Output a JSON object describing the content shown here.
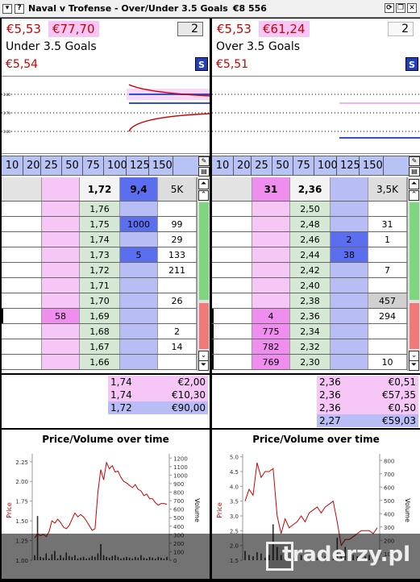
{
  "window": {
    "title": "Naval v Trofense - Over/Under 3.5 Goals",
    "amount": "€8 556"
  },
  "colors": {
    "back": "#b9bdf6",
    "lay": "#f6c6f6",
    "price": "#d4e8d4",
    "red": "#c00000",
    "blue": "#1f3fbf"
  },
  "left": {
    "best_price": "€5,53",
    "matched": "€77,70",
    "quantity": "2",
    "selection": "Under 3.5 Goals",
    "last_price": "€5,54",
    "s_button": "S",
    "stakes": [
      "10",
      "20",
      "25",
      "50",
      "75",
      "100",
      "125",
      "150"
    ],
    "header": {
      "col2": "1,72",
      "col3": "9,4",
      "col4": "5K"
    },
    "rows": [
      {
        "lay": "",
        "price": "1,76",
        "back": "",
        "vol": ""
      },
      {
        "lay": "",
        "price": "1,75",
        "back": "1000",
        "vol": "99"
      },
      {
        "lay": "",
        "price": "1,74",
        "back": "",
        "vol": "29"
      },
      {
        "lay": "",
        "price": "1,73",
        "back": "5",
        "vol": "133"
      },
      {
        "lay": "",
        "price": "1,72",
        "back": "",
        "vol": "211"
      },
      {
        "lay": "",
        "price": "1,71",
        "back": "",
        "vol": ""
      },
      {
        "lay": "",
        "price": "1,70",
        "back": "",
        "vol": "26"
      },
      {
        "lay": "58",
        "price": "1,69",
        "back": "",
        "vol": ""
      },
      {
        "lay": "",
        "price": "1,68",
        "back": "",
        "vol": "2"
      },
      {
        "lay": "",
        "price": "1,67",
        "back": "",
        "vol": "14"
      },
      {
        "lay": "",
        "price": "1,66",
        "back": "",
        "vol": ""
      }
    ],
    "bets": [
      {
        "price": "1,74",
        "amount": "€2,00"
      },
      {
        "price": "1,74",
        "amount": "€10,30"
      },
      {
        "price": "1,72",
        "amount": "€90,00"
      }
    ],
    "chart_data": {
      "type": "line",
      "title": "Price/Volume over time",
      "ylabel": "Price",
      "y2label": "Volume",
      "price_ticks": [
        "2.25",
        "2.00",
        "1.75",
        "1.50",
        "1.25",
        "1.00"
      ],
      "price_lim": [
        1.0,
        2.35
      ],
      "volume_ticks": [
        "1200",
        "1100",
        "1000",
        "900",
        "800",
        "700",
        "600",
        "500",
        "400",
        "300",
        "200",
        "100",
        "0"
      ],
      "volume_lim": [
        0,
        1250
      ],
      "price": [
        1.28,
        1.34,
        1.31,
        1.33,
        1.3,
        1.36,
        1.5,
        1.47,
        1.52,
        1.48,
        1.42,
        1.4,
        1.44,
        1.52,
        1.6,
        1.55,
        1.58,
        1.55,
        1.5,
        1.44,
        1.38,
        1.4,
        1.86,
        2.15,
        2.02,
        2.24,
        2.16,
        2.2,
        2.12,
        2.13,
        2.05,
        2.0,
        1.98,
        1.95,
        1.92,
        1.96,
        1.9,
        1.88,
        1.82,
        1.84,
        1.78,
        1.78,
        1.73,
        1.7,
        1.72,
        1.72,
        1.71
      ],
      "volume": [
        60,
        520,
        40,
        30,
        80,
        20,
        70,
        110,
        20,
        60,
        30,
        90,
        50,
        40,
        60,
        20,
        30,
        40,
        20,
        30,
        50,
        40,
        80,
        190,
        60,
        40,
        30,
        50,
        60,
        40,
        20,
        30,
        40,
        30,
        20,
        40,
        30,
        60,
        30,
        20,
        40,
        30,
        20,
        40,
        30,
        20,
        40
      ]
    }
  },
  "right": {
    "best_price": "€5,53",
    "matched": "€61,24",
    "quantity": "2",
    "selection": "Over 3.5 Goals",
    "last_price": "€5,51",
    "s_button": "S",
    "stakes": [
      "10",
      "20",
      "25",
      "50",
      "75",
      "100",
      "125",
      "150"
    ],
    "header": {
      "col1": "31",
      "col2": "2,36",
      "col3": "",
      "col4": "3,5K"
    },
    "rows": [
      {
        "lay": "",
        "price": "2,50",
        "back": "",
        "vol": ""
      },
      {
        "lay": "",
        "price": "2,48",
        "back": "",
        "vol": "31"
      },
      {
        "lay": "",
        "price": "2,46",
        "back": "2",
        "vol": "1"
      },
      {
        "lay": "",
        "price": "2,44",
        "back": "38",
        "vol": ""
      },
      {
        "lay": "",
        "price": "2,42",
        "back": "",
        "vol": "7"
      },
      {
        "lay": "",
        "price": "2,40",
        "back": "",
        "vol": ""
      },
      {
        "lay": "",
        "price": "2,38",
        "back": "",
        "vol": "457"
      },
      {
        "lay": "4",
        "price": "2,36",
        "back": "",
        "vol": "294"
      },
      {
        "lay": "775",
        "price": "2,34",
        "back": "",
        "vol": ""
      },
      {
        "lay": "782",
        "price": "2,32",
        "back": "",
        "vol": ""
      },
      {
        "lay": "769",
        "price": "2,30",
        "back": "",
        "vol": "10"
      }
    ],
    "bets": [
      {
        "price": "2,36",
        "amount": "€0,51"
      },
      {
        "price": "2,36",
        "amount": "€57,35"
      },
      {
        "price": "2,36",
        "amount": "€0,50"
      },
      {
        "price": "2,27",
        "amount": "€59,03"
      }
    ],
    "chart_data": {
      "type": "line",
      "title": "Price/Volume over time",
      "ylabel": "Price",
      "y2label": "Volume",
      "price_ticks": [
        "5.0",
        "4.5",
        "4.0",
        "3.5",
        "3.0",
        "2.5",
        "2.0",
        "1.5"
      ],
      "price_lim": [
        1.5,
        5.1
      ],
      "volume_ticks": [
        "800",
        "700",
        "600",
        "500",
        "400",
        "300",
        "200",
        "100"
      ],
      "volume_lim": [
        50,
        850
      ],
      "price": [
        3.5,
        3.9,
        3.7,
        4.8,
        4.3,
        4.5,
        4.5,
        4.6,
        3.0,
        2.4,
        2.9,
        2.6,
        2.7,
        2.8,
        3.0,
        2.8,
        3.1,
        3.2,
        3.3,
        3.1,
        3.3,
        3.4,
        3.5,
        2.8,
        2.0,
        2.2,
        2.2,
        2.3,
        2.4,
        2.5,
        2.5,
        2.5,
        2.4,
        2.6
      ],
      "volume": [
        120,
        90,
        80,
        110,
        100,
        70,
        90,
        320,
        150,
        90,
        80,
        60,
        70,
        80,
        90,
        70,
        60,
        80,
        70,
        90,
        80,
        70,
        60,
        220,
        80,
        150,
        100,
        90,
        80,
        70,
        80,
        90,
        80,
        70
      ]
    }
  },
  "watermark": {
    "text": "traderzy.pl"
  }
}
